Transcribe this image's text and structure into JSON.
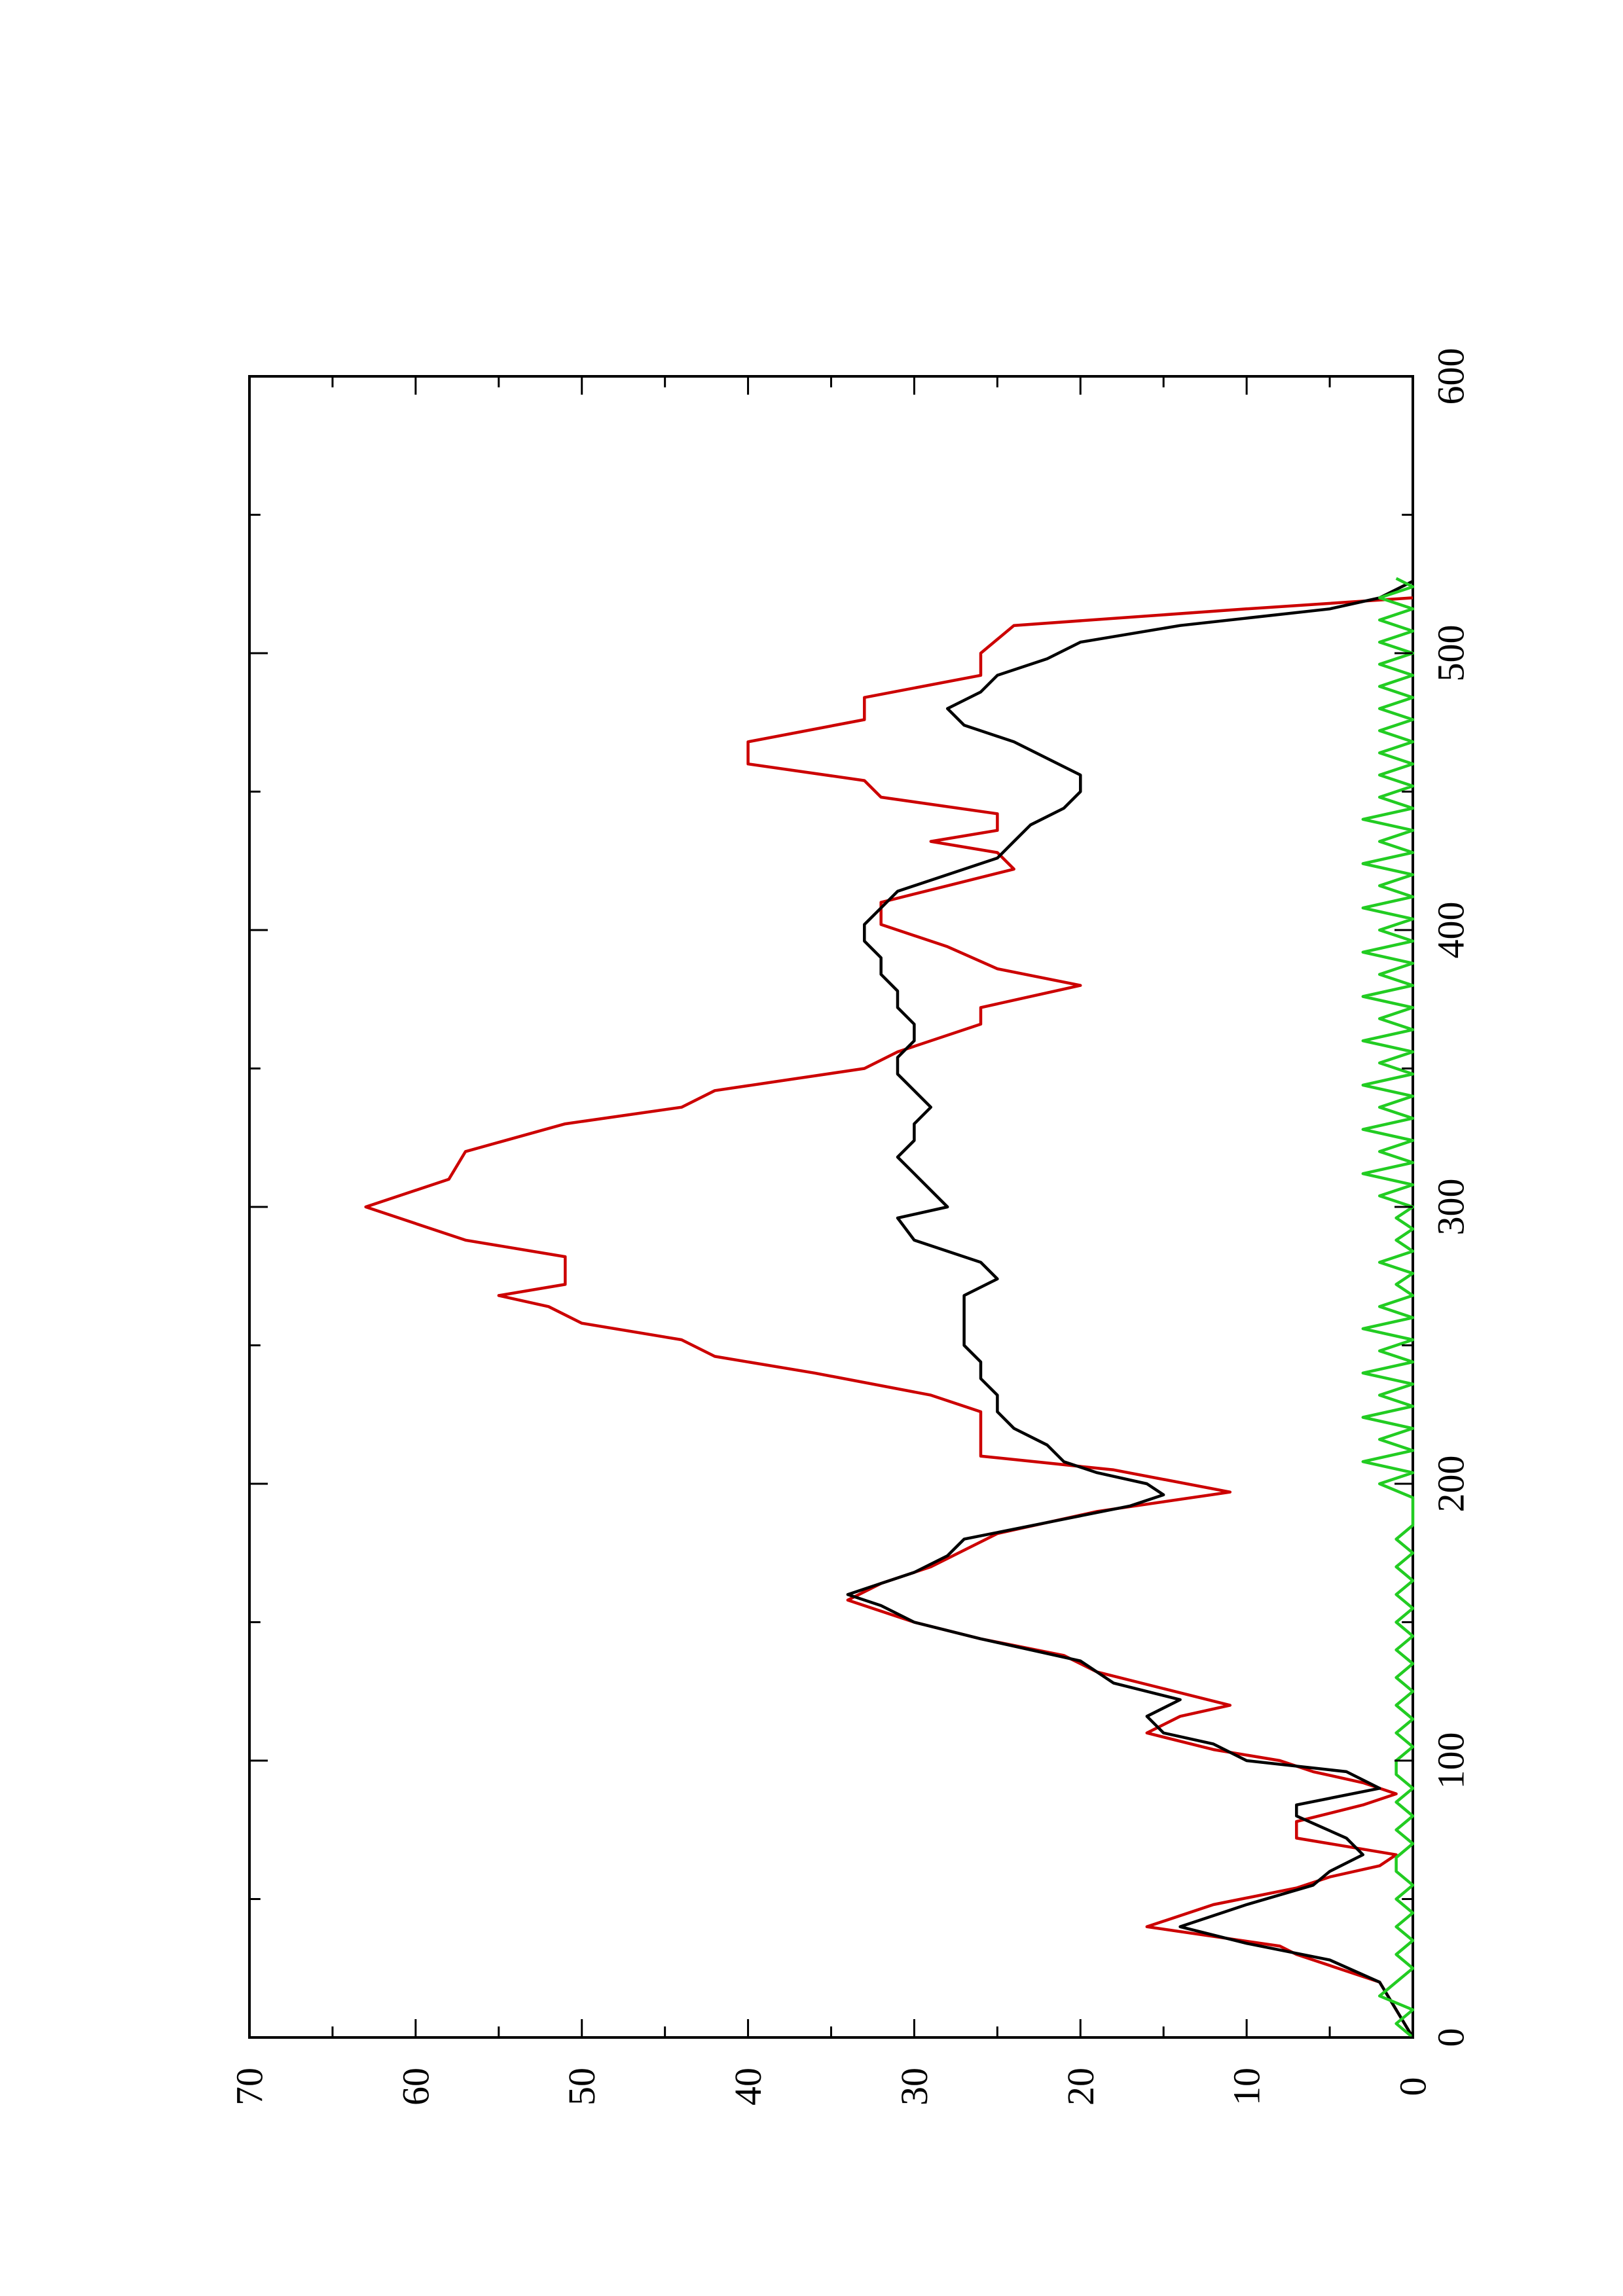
{
  "chart_data": {
    "type": "line",
    "orientation": "rotated-90-ccw",
    "title": "",
    "xlabel": "",
    "ylabel": "",
    "xlim": [
      0,
      600
    ],
    "ylim": [
      0,
      70
    ],
    "x_ticks": [
      "0",
      "100",
      "200",
      "300",
      "400",
      "500",
      "600"
    ],
    "y_ticks": [
      "0",
      "10",
      "20",
      "30",
      "40",
      "50",
      "60",
      "70"
    ],
    "grid": false,
    "legend": "none",
    "series": [
      {
        "color": "#cc0000",
        "style": "step-line",
        "points": [
          [
            0,
            0
          ],
          [
            20,
            2
          ],
          [
            30,
            7
          ],
          [
            33,
            8
          ],
          [
            40,
            16
          ],
          [
            48,
            12
          ],
          [
            54,
            7
          ],
          [
            58,
            5
          ],
          [
            62,
            2
          ],
          [
            66,
            1
          ],
          [
            72,
            7
          ],
          [
            78,
            7
          ],
          [
            84,
            3
          ],
          [
            88,
            1
          ],
          [
            92,
            3
          ],
          [
            96,
            6
          ],
          [
            100,
            8
          ],
          [
            104,
            12
          ],
          [
            110,
            16
          ],
          [
            116,
            14
          ],
          [
            120,
            11
          ],
          [
            126,
            15
          ],
          [
            132,
            19
          ],
          [
            138,
            21
          ],
          [
            144,
            26
          ],
          [
            150,
            30
          ],
          [
            158,
            34
          ],
          [
            164,
            32
          ],
          [
            170,
            29
          ],
          [
            176,
            27
          ],
          [
            182,
            25
          ],
          [
            190,
            19
          ],
          [
            197,
            11
          ],
          [
            205,
            18
          ],
          [
            210,
            26
          ],
          [
            226,
            26
          ],
          [
            232,
            29
          ],
          [
            240,
            36
          ],
          [
            246,
            42
          ],
          [
            252,
            44
          ],
          [
            258,
            50
          ],
          [
            264,
            52
          ],
          [
            268,
            55
          ],
          [
            272,
            51
          ],
          [
            282,
            51
          ],
          [
            288,
            57
          ],
          [
            300,
            63
          ],
          [
            310,
            58
          ],
          [
            320,
            57
          ],
          [
            330,
            51
          ],
          [
            336,
            44
          ],
          [
            342,
            42
          ],
          [
            350,
            33
          ],
          [
            356,
            31
          ],
          [
            366,
            26
          ],
          [
            372,
            26
          ],
          [
            380,
            20
          ],
          [
            386,
            25
          ],
          [
            394,
            28
          ],
          [
            402,
            32
          ],
          [
            410,
            32
          ],
          [
            416,
            28
          ],
          [
            422,
            24
          ],
          [
            428,
            25
          ],
          [
            432,
            29
          ],
          [
            436,
            25
          ],
          [
            442,
            25
          ],
          [
            448,
            32
          ],
          [
            454,
            33
          ],
          [
            460,
            40
          ],
          [
            468,
            40
          ],
          [
            476,
            33
          ],
          [
            484,
            33
          ],
          [
            492,
            26
          ],
          [
            500,
            26
          ],
          [
            510,
            24
          ],
          [
            516,
            10
          ],
          [
            520,
            0
          ]
        ]
      },
      {
        "color": "#000000",
        "style": "line",
        "points": [
          [
            0,
            0
          ],
          [
            10,
            1
          ],
          [
            20,
            2
          ],
          [
            28,
            5
          ],
          [
            34,
            10
          ],
          [
            40,
            14
          ],
          [
            48,
            10
          ],
          [
            55,
            6
          ],
          [
            60,
            5
          ],
          [
            66,
            3
          ],
          [
            72,
            4
          ],
          [
            80,
            7
          ],
          [
            84,
            7
          ],
          [
            90,
            2
          ],
          [
            96,
            4
          ],
          [
            100,
            10
          ],
          [
            106,
            12
          ],
          [
            110,
            15
          ],
          [
            116,
            16
          ],
          [
            122,
            14
          ],
          [
            128,
            18
          ],
          [
            136,
            20
          ],
          [
            144,
            26
          ],
          [
            150,
            30
          ],
          [
            156,
            32
          ],
          [
            160,
            34
          ],
          [
            164,
            32
          ],
          [
            168,
            30
          ],
          [
            174,
            28
          ],
          [
            180,
            27
          ],
          [
            186,
            22
          ],
          [
            192,
            17
          ],
          [
            196,
            15
          ],
          [
            200,
            16
          ],
          [
            204,
            19
          ],
          [
            208,
            21
          ],
          [
            214,
            22
          ],
          [
            220,
            24
          ],
          [
            226,
            25
          ],
          [
            232,
            25
          ],
          [
            238,
            26
          ],
          [
            244,
            26
          ],
          [
            250,
            27
          ],
          [
            256,
            27
          ],
          [
            262,
            27
          ],
          [
            268,
            27
          ],
          [
            274,
            25
          ],
          [
            280,
            26
          ],
          [
            288,
            30
          ],
          [
            296,
            31
          ],
          [
            300,
            28
          ],
          [
            306,
            29
          ],
          [
            312,
            30
          ],
          [
            318,
            31
          ],
          [
            324,
            30
          ],
          [
            330,
            30
          ],
          [
            336,
            29
          ],
          [
            342,
            30
          ],
          [
            348,
            31
          ],
          [
            354,
            31
          ],
          [
            360,
            30
          ],
          [
            366,
            30
          ],
          [
            372,
            31
          ],
          [
            378,
            31
          ],
          [
            384,
            32
          ],
          [
            390,
            32
          ],
          [
            396,
            33
          ],
          [
            402,
            33
          ],
          [
            408,
            32
          ],
          [
            414,
            31
          ],
          [
            420,
            28
          ],
          [
            426,
            25
          ],
          [
            432,
            24
          ],
          [
            438,
            23
          ],
          [
            444,
            21
          ],
          [
            450,
            20
          ],
          [
            456,
            20
          ],
          [
            462,
            22
          ],
          [
            468,
            24
          ],
          [
            474,
            27
          ],
          [
            480,
            28
          ],
          [
            486,
            26
          ],
          [
            492,
            25
          ],
          [
            498,
            22
          ],
          [
            504,
            20
          ],
          [
            510,
            14
          ],
          [
            516,
            5
          ],
          [
            520,
            2
          ],
          [
            526,
            0
          ]
        ]
      },
      {
        "color": "#22cc22",
        "style": "line",
        "points": [
          [
            0,
            0
          ],
          [
            5,
            1
          ],
          [
            10,
            0
          ],
          [
            15,
            2
          ],
          [
            20,
            1
          ],
          [
            25,
            0
          ],
          [
            30,
            1
          ],
          [
            35,
            0
          ],
          [
            40,
            1
          ],
          [
            45,
            0
          ],
          [
            50,
            1
          ],
          [
            55,
            0
          ],
          [
            60,
            1
          ],
          [
            65,
            1
          ],
          [
            70,
            0
          ],
          [
            75,
            1
          ],
          [
            80,
            0
          ],
          [
            85,
            1
          ],
          [
            90,
            0
          ],
          [
            95,
            1
          ],
          [
            100,
            1
          ],
          [
            105,
            0
          ],
          [
            110,
            1
          ],
          [
            115,
            0
          ],
          [
            120,
            1
          ],
          [
            125,
            0
          ],
          [
            130,
            1
          ],
          [
            135,
            0
          ],
          [
            140,
            1
          ],
          [
            145,
            0
          ],
          [
            150,
            1
          ],
          [
            155,
            0
          ],
          [
            160,
            1
          ],
          [
            165,
            0
          ],
          [
            170,
            1
          ],
          [
            175,
            0
          ],
          [
            180,
            1
          ],
          [
            185,
            0
          ],
          [
            190,
            0
          ],
          [
            195,
            0
          ],
          [
            200,
            2
          ],
          [
            204,
            0
          ],
          [
            208,
            3
          ],
          [
            212,
            0
          ],
          [
            216,
            2
          ],
          [
            220,
            0
          ],
          [
            224,
            3
          ],
          [
            228,
            0
          ],
          [
            232,
            2
          ],
          [
            236,
            0
          ],
          [
            240,
            3
          ],
          [
            244,
            0
          ],
          [
            248,
            2
          ],
          [
            252,
            0
          ],
          [
            256,
            3
          ],
          [
            260,
            0
          ],
          [
            264,
            2
          ],
          [
            268,
            0
          ],
          [
            272,
            1
          ],
          [
            276,
            0
          ],
          [
            280,
            2
          ],
          [
            284,
            0
          ],
          [
            288,
            1
          ],
          [
            292,
            0
          ],
          [
            296,
            1
          ],
          [
            300,
            0
          ],
          [
            304,
            2
          ],
          [
            308,
            0
          ],
          [
            312,
            3
          ],
          [
            316,
            0
          ],
          [
            320,
            2
          ],
          [
            324,
            0
          ],
          [
            328,
            3
          ],
          [
            332,
            0
          ],
          [
            336,
            2
          ],
          [
            340,
            0
          ],
          [
            344,
            3
          ],
          [
            348,
            0
          ],
          [
            352,
            2
          ],
          [
            356,
            0
          ],
          [
            360,
            3
          ],
          [
            364,
            0
          ],
          [
            368,
            2
          ],
          [
            372,
            0
          ],
          [
            376,
            3
          ],
          [
            380,
            0
          ],
          [
            384,
            2
          ],
          [
            388,
            0
          ],
          [
            392,
            3
          ],
          [
            396,
            0
          ],
          [
            400,
            2
          ],
          [
            404,
            0
          ],
          [
            408,
            3
          ],
          [
            412,
            0
          ],
          [
            416,
            2
          ],
          [
            420,
            0
          ],
          [
            424,
            3
          ],
          [
            428,
            0
          ],
          [
            432,
            2
          ],
          [
            436,
            0
          ],
          [
            440,
            3
          ],
          [
            444,
            0
          ],
          [
            448,
            2
          ],
          [
            452,
            0
          ],
          [
            456,
            2
          ],
          [
            460,
            0
          ],
          [
            464,
            2
          ],
          [
            468,
            0
          ],
          [
            472,
            2
          ],
          [
            476,
            0
          ],
          [
            480,
            2
          ],
          [
            484,
            0
          ],
          [
            488,
            2
          ],
          [
            492,
            0
          ],
          [
            496,
            2
          ],
          [
            500,
            0
          ],
          [
            504,
            2
          ],
          [
            508,
            0
          ],
          [
            512,
            2
          ],
          [
            516,
            0
          ],
          [
            520,
            2
          ],
          [
            524,
            0
          ],
          [
            527,
            1
          ]
        ]
      }
    ]
  }
}
